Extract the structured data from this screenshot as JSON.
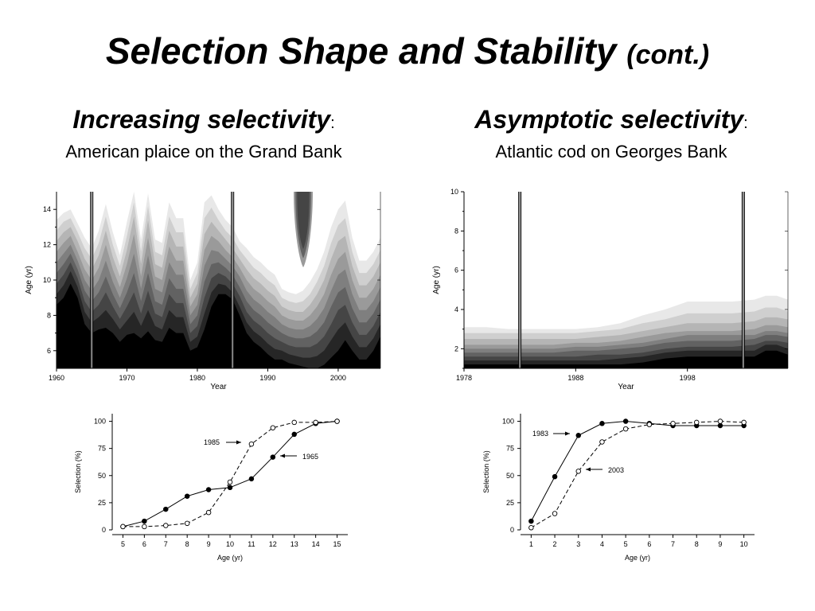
{
  "slide": {
    "title": "Selection Shape and Stability",
    "title_suffix": "(cont.)"
  },
  "left_panel": {
    "heading": "Increasing selectivity",
    "colon": ":",
    "subheading": "American plaice on the Grand Bank"
  },
  "right_panel": {
    "heading": "Asymptotic selectivity",
    "colon": ":",
    "subheading": "Atlantic cod on Georges Bank"
  },
  "colors": {
    "band_shades": [
      "#e8e8e8",
      "#cfcfcf",
      "#b5b5b5",
      "#9a9a9a",
      "#7f7f7f",
      "#626262",
      "#454545",
      "#262626",
      "#000000"
    ]
  },
  "chart_data": [
    {
      "id": "plaice-contour",
      "type": "area",
      "subtype": "contour",
      "xlabel": "Year",
      "ylabel": "Age (yr)",
      "xlim": [
        1960,
        2006
      ],
      "ylim": [
        5,
        15
      ],
      "xticks": [
        1960,
        1970,
        1980,
        1990,
        2000
      ],
      "yticks": [
        6,
        8,
        10,
        12,
        14
      ],
      "marked_years": [
        1965,
        1985
      ],
      "x": [
        1960,
        1961,
        1962,
        1963,
        1964,
        1965,
        1966,
        1967,
        1968,
        1969,
        1970,
        1971,
        1972,
        1973,
        1974,
        1975,
        1976,
        1977,
        1978,
        1979,
        1980,
        1981,
        1982,
        1983,
        1984,
        1985,
        1986,
        1987,
        1988,
        1989,
        1990,
        1991,
        1992,
        1993,
        1994,
        1995,
        1996,
        1997,
        1998,
        1999,
        2000,
        2001,
        2002,
        2003,
        2004,
        2005,
        2006
      ],
      "series": [
        {
          "values": [
            8.6,
            9.0,
            9.8,
            9.0,
            7.5,
            7.0,
            7.2,
            7.3,
            7.0,
            6.5,
            6.9,
            7.0,
            6.7,
            7.1,
            6.6,
            6.5,
            7.3,
            7.0,
            7.0,
            6.0,
            6.2,
            7.2,
            8.5,
            9.2,
            9.2,
            8.9,
            8.0,
            7.0,
            6.5,
            6.2,
            5.8,
            5.5,
            5.5,
            5.3,
            5.2,
            5.1,
            5.0,
            5.0,
            5.2,
            5.6,
            6.0,
            6.6,
            6.0,
            5.5,
            5.5,
            6.0,
            6.8
          ]
        },
        {
          "values": [
            9.2,
            9.7,
            10.5,
            9.6,
            8.2,
            7.6,
            7.9,
            8.3,
            7.8,
            7.2,
            7.7,
            8.2,
            7.4,
            8.3,
            7.4,
            7.2,
            8.3,
            7.9,
            7.9,
            6.5,
            6.8,
            8.1,
            9.3,
            9.8,
            9.7,
            9.3,
            8.5,
            7.6,
            7.1,
            6.8,
            6.4,
            6.1,
            6.0,
            5.8,
            5.7,
            5.6,
            5.6,
            5.7,
            6.0,
            6.6,
            7.2,
            7.6,
            6.8,
            6.2,
            6.2,
            6.7,
            7.5
          ]
        },
        {
          "values": [
            9.8,
            10.3,
            11.0,
            10.1,
            8.8,
            8.2,
            8.6,
            9.3,
            8.5,
            7.8,
            8.5,
            9.3,
            8.1,
            9.4,
            8.1,
            7.9,
            9.2,
            8.7,
            8.7,
            7.0,
            7.4,
            9.0,
            10.1,
            10.4,
            10.2,
            9.8,
            9.1,
            8.2,
            7.7,
            7.4,
            7.0,
            6.7,
            6.5,
            6.3,
            6.2,
            6.2,
            6.2,
            6.4,
            6.8,
            7.5,
            8.3,
            8.6,
            7.6,
            6.9,
            6.9,
            7.4,
            8.2
          ]
        },
        {
          "values": [
            10.4,
            10.9,
            11.5,
            10.6,
            9.4,
            8.8,
            9.3,
            10.2,
            9.2,
            8.4,
            9.3,
            10.4,
            8.8,
            10.4,
            8.8,
            8.6,
            10.1,
            9.5,
            9.5,
            7.5,
            8.0,
            9.9,
            10.9,
            11.0,
            10.7,
            10.3,
            9.6,
            8.8,
            8.3,
            8.0,
            7.6,
            7.3,
            7.0,
            6.8,
            6.7,
            6.7,
            6.8,
            7.1,
            7.6,
            8.5,
            9.3,
            9.6,
            8.4,
            7.6,
            7.6,
            8.1,
            8.9
          ]
        },
        {
          "values": [
            11.0,
            11.5,
            12.0,
            11.1,
            10.0,
            9.4,
            10.0,
            11.1,
            9.9,
            9.0,
            10.1,
            11.5,
            9.5,
            11.4,
            9.5,
            9.3,
            11.0,
            10.3,
            10.3,
            8.0,
            8.6,
            10.8,
            11.7,
            11.6,
            11.2,
            10.8,
            10.2,
            9.4,
            8.9,
            8.6,
            8.2,
            7.9,
            7.5,
            7.3,
            7.2,
            7.2,
            7.4,
            7.8,
            8.4,
            9.4,
            10.3,
            10.6,
            9.2,
            8.3,
            8.3,
            8.8,
            9.6
          ]
        },
        {
          "values": [
            11.6,
            12.1,
            12.5,
            11.6,
            10.6,
            10.0,
            10.7,
            12.0,
            10.6,
            9.6,
            10.9,
            12.6,
            10.2,
            12.4,
            10.2,
            10.0,
            11.9,
            11.1,
            11.1,
            8.5,
            9.2,
            11.7,
            12.5,
            12.2,
            11.7,
            11.3,
            10.7,
            10.0,
            9.5,
            9.2,
            8.8,
            8.5,
            8.0,
            7.8,
            7.7,
            7.7,
            8.0,
            8.5,
            9.2,
            10.3,
            11.2,
            11.6,
            10.0,
            9.0,
            9.0,
            9.5,
            10.3
          ]
        },
        {
          "values": [
            12.2,
            12.7,
            13.0,
            12.2,
            11.2,
            10.6,
            11.4,
            12.8,
            11.3,
            10.2,
            11.7,
            13.6,
            10.9,
            13.4,
            10.9,
            10.7,
            12.8,
            11.9,
            11.9,
            9.0,
            9.8,
            12.6,
            13.3,
            12.8,
            12.3,
            11.8,
            11.2,
            10.6,
            10.1,
            9.8,
            9.4,
            9.1,
            8.5,
            8.3,
            8.2,
            8.2,
            8.6,
            9.2,
            10.0,
            11.2,
            12.2,
            12.5,
            10.8,
            9.7,
            9.7,
            10.2,
            11.0
          ]
        },
        {
          "values": [
            12.8,
            13.3,
            13.5,
            12.7,
            11.8,
            11.2,
            12.1,
            13.6,
            12.0,
            10.8,
            12.5,
            14.4,
            11.6,
            14.2,
            11.6,
            11.4,
            13.6,
            12.7,
            12.7,
            9.5,
            10.4,
            13.5,
            14.1,
            13.4,
            12.8,
            12.4,
            11.7,
            11.2,
            10.7,
            10.4,
            10.0,
            9.7,
            9.0,
            8.8,
            8.7,
            8.8,
            9.2,
            9.9,
            10.8,
            12.1,
            13.1,
            13.5,
            11.6,
            10.4,
            10.4,
            10.9,
            11.7
          ]
        },
        {
          "values": [
            13.4,
            13.8,
            14.0,
            13.2,
            12.4,
            11.8,
            12.8,
            14.3,
            12.7,
            11.4,
            13.3,
            15.0,
            12.3,
            14.9,
            12.3,
            12.1,
            14.4,
            13.5,
            13.5,
            10.0,
            11.0,
            14.4,
            14.8,
            14.0,
            13.4,
            13.0,
            12.2,
            11.8,
            11.3,
            11.0,
            10.6,
            10.3,
            9.5,
            9.3,
            9.2,
            9.4,
            9.9,
            10.6,
            11.6,
            13.0,
            14.0,
            14.5,
            12.4,
            11.1,
            11.1,
            11.6,
            12.4
          ]
        }
      ]
    },
    {
      "id": "cod-contour",
      "type": "area",
      "subtype": "contour",
      "xlabel": "Year",
      "ylabel": "Age (yr)",
      "xlim": [
        1978,
        2007
      ],
      "ylim": [
        1,
        10
      ],
      "xticks": [
        1978,
        1988,
        1998
      ],
      "yticks": [
        2,
        4,
        6,
        8,
        10
      ],
      "marked_years": [
        1983,
        2003
      ],
      "x": [
        1978,
        1980,
        1982,
        1984,
        1986,
        1988,
        1990,
        1992,
        1994,
        1996,
        1998,
        2000,
        2002,
        2004,
        2005,
        2006,
        2007
      ],
      "series": [
        {
          "values": [
            1.2,
            1.2,
            1.2,
            1.2,
            1.2,
            1.2,
            1.2,
            1.2,
            1.3,
            1.5,
            1.6,
            1.6,
            1.6,
            1.6,
            1.9,
            1.9,
            1.7
          ]
        },
        {
          "values": [
            1.4,
            1.4,
            1.4,
            1.4,
            1.4,
            1.4,
            1.4,
            1.5,
            1.6,
            1.8,
            1.9,
            1.9,
            1.9,
            1.9,
            2.2,
            2.2,
            2.0
          ]
        },
        {
          "values": [
            1.6,
            1.6,
            1.6,
            1.6,
            1.6,
            1.6,
            1.7,
            1.7,
            1.8,
            2.0,
            2.1,
            2.1,
            2.1,
            2.2,
            2.4,
            2.4,
            2.3
          ]
        },
        {
          "values": [
            1.8,
            1.8,
            1.8,
            1.8,
            1.8,
            1.9,
            1.9,
            2.0,
            2.1,
            2.3,
            2.4,
            2.4,
            2.4,
            2.5,
            2.7,
            2.7,
            2.6
          ]
        },
        {
          "values": [
            2.0,
            2.0,
            2.0,
            2.0,
            2.0,
            2.1,
            2.1,
            2.2,
            2.3,
            2.5,
            2.7,
            2.7,
            2.7,
            2.7,
            2.9,
            2.9,
            2.8
          ]
        },
        {
          "values": [
            2.2,
            2.2,
            2.2,
            2.2,
            2.2,
            2.3,
            2.3,
            2.4,
            2.6,
            2.8,
            2.9,
            2.9,
            2.9,
            3.0,
            3.2,
            3.2,
            3.1
          ]
        },
        {
          "values": [
            2.5,
            2.5,
            2.5,
            2.5,
            2.5,
            2.5,
            2.6,
            2.7,
            2.9,
            3.1,
            3.3,
            3.3,
            3.3,
            3.4,
            3.6,
            3.6,
            3.5
          ]
        },
        {
          "values": [
            2.8,
            2.8,
            2.8,
            2.8,
            2.8,
            2.8,
            2.9,
            3.0,
            3.3,
            3.5,
            3.8,
            3.8,
            3.8,
            3.9,
            4.1,
            4.1,
            3.9
          ]
        },
        {
          "values": [
            3.1,
            3.1,
            3.0,
            3.0,
            3.0,
            3.0,
            3.1,
            3.3,
            3.7,
            4.0,
            4.4,
            4.4,
            4.4,
            4.5,
            4.7,
            4.7,
            4.5
          ]
        }
      ]
    },
    {
      "id": "plaice-selection",
      "type": "line",
      "xlabel": "Age (yr)",
      "ylabel": "Selection (%)",
      "xlim": [
        4.5,
        15.5
      ],
      "ylim": [
        0,
        107
      ],
      "xticks": [
        5,
        6,
        7,
        8,
        9,
        10,
        11,
        12,
        13,
        14,
        15
      ],
      "yticks": [
        0,
        25,
        50,
        75,
        100
      ],
      "x": [
        5,
        6,
        7,
        8,
        9,
        10,
        11,
        12,
        13,
        14,
        15
      ],
      "series": [
        {
          "name": "1965",
          "marker": "filled",
          "dash": "solid",
          "values": [
            3,
            8,
            19,
            31,
            37,
            39,
            47,
            67,
            88,
            98,
            100
          ]
        },
        {
          "name": "1985",
          "marker": "open",
          "dash": "dashed",
          "values": [
            3,
            3,
            4,
            6,
            16,
            44,
            79,
            94,
            99,
            99,
            100
          ]
        }
      ],
      "annotations": [
        {
          "text": "1985",
          "target_series": "1985",
          "x": 11,
          "arrow_from": "left"
        },
        {
          "text": "1965",
          "target_series": "1965",
          "x": 12,
          "arrow_from": "right"
        }
      ]
    },
    {
      "id": "cod-selection",
      "type": "line",
      "xlabel": "Age (yr)",
      "ylabel": "Selection (%)",
      "xlim": [
        0.55,
        10.45
      ],
      "ylim": [
        0,
        107
      ],
      "xticks": [
        1,
        2,
        3,
        4,
        5,
        6,
        7,
        8,
        9,
        10
      ],
      "yticks": [
        0,
        25,
        50,
        75,
        100
      ],
      "x": [
        1,
        2,
        3,
        4,
        5,
        6,
        7,
        8,
        9,
        10
      ],
      "series": [
        {
          "name": "1983",
          "marker": "filled",
          "dash": "solid",
          "values": [
            8,
            49,
            87,
            98,
            100,
            98,
            96,
            96,
            96,
            96
          ]
        },
        {
          "name": "2003",
          "marker": "open",
          "dash": "dashed",
          "values": [
            2,
            15,
            54,
            81,
            93,
            97,
            98,
            99,
            100,
            99
          ]
        }
      ],
      "annotations": [
        {
          "text": "1983",
          "target_series": "1983",
          "x": 3,
          "arrow_from": "left"
        },
        {
          "text": "2003",
          "target_series": "2003",
          "x": 3.3,
          "arrow_from": "right"
        }
      ]
    }
  ]
}
